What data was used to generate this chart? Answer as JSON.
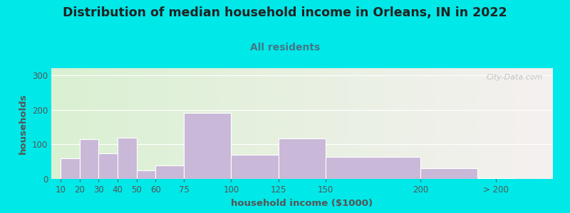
{
  "title": "Distribution of median household income in Orleans, IN in 2022",
  "subtitle": "All residents",
  "xlabel": "household income ($1000)",
  "ylabel": "households",
  "title_fontsize": 12.5,
  "subtitle_fontsize": 10,
  "label_fontsize": 9.5,
  "tick_fontsize": 8.5,
  "bar_color": "#c9b8d8",
  "bar_edge_color": "#ffffff",
  "background_outer": "#00e8e8",
  "background_inner_left": "#daf0d2",
  "background_inner_right": "#f5f0f0",
  "yticks": [
    0,
    100,
    200,
    300
  ],
  "ylim": [
    0,
    320
  ],
  "subtitle_color": "#447788",
  "title_color": "#222222",
  "tick_color": "#555555",
  "watermark_text": "City-Data.com",
  "bar_lefts": [
    10,
    20,
    30,
    40,
    50,
    60,
    75,
    100,
    125,
    150,
    200,
    230
  ],
  "bar_widths": [
    10,
    10,
    10,
    10,
    10,
    15,
    25,
    25,
    25,
    50,
    30,
    20
  ],
  "bar_heights": [
    60,
    115,
    73,
    118,
    25,
    38,
    190,
    70,
    117,
    63,
    30,
    3
  ],
  "xtick_positions": [
    10,
    20,
    30,
    40,
    50,
    60,
    75,
    100,
    125,
    150,
    200,
    240
  ],
  "xtick_labels": [
    "10",
    "20",
    "30",
    "40",
    "50",
    "60",
    "75",
    "100",
    "125",
    "150",
    "200",
    "> 200"
  ],
  "xlim": [
    5,
    270
  ],
  "grid_color": "#ccddcc",
  "watermark_color": "#bbbbbb"
}
